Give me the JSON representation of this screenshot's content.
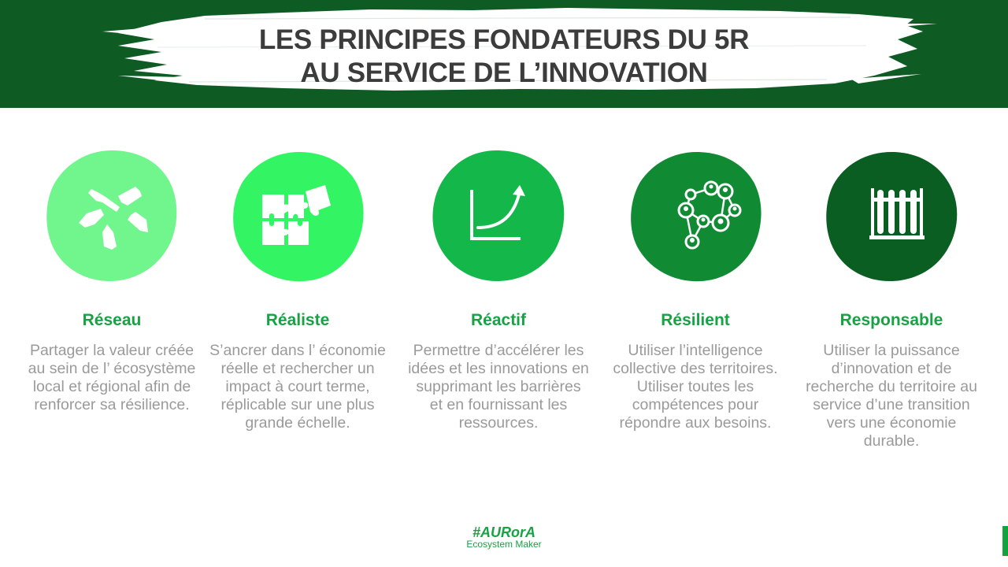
{
  "header": {
    "title_line1": "LES PRINCIPES FONDATEURS DU 5R",
    "title_line2": "AU SERVICE DE L’INNOVATION",
    "band_color": "#0e5c24",
    "brush_color": "#ffffff"
  },
  "principles": [
    {
      "title": "Réseau",
      "description": "Partager la valeur créée au sein de l’ écosystème local et régional afin de renforcer sa résilience.",
      "icon": "hands-together-icon",
      "circle_color": "#71f58d"
    },
    {
      "title": "Réaliste",
      "description": "S’ancrer dans l’ économie réelle et rechercher un impact à court terme, réplicable sur une plus grande échelle.",
      "icon": "puzzle-icon",
      "circle_color": "#33f563"
    },
    {
      "title": "Réactif",
      "description": "Permettre d’accélérer les idées et les innovations en supprimant les barrières et en fournissant les ressources.",
      "icon": "growth-chart-icon",
      "circle_color": "#14b74a"
    },
    {
      "title": "Résilient",
      "description": "Utiliser l’intelligence collective des territoires. Utiliser toutes les compétences pour répondre aux besoins.",
      "icon": "network-people-icon",
      "circle_color": "#108b34"
    },
    {
      "title": "Responsable",
      "description": "Utiliser la puissance d’innovation et de recherche du territoire au service d’une transition vers une économie durable.",
      "icon": "test-tubes-icon",
      "circle_color": "#0b5e22"
    }
  ],
  "footer": {
    "tag": "#AURorA",
    "subtitle": "Ecosystem Maker"
  },
  "colors": {
    "accent_green": "#17a243",
    "description_gray": "#9a9a9a",
    "title_dark": "#3c3c3c"
  }
}
